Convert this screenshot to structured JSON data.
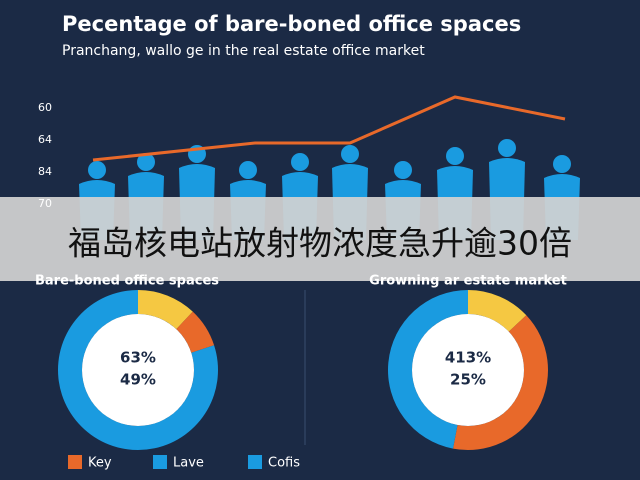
{
  "header": {
    "title": "Pecentage of bare-boned office spaces",
    "subtitle": "Pranchang, wallo ge in the real estate office market"
  },
  "trend": {
    "axis_labels": [
      "60",
      "64",
      "84",
      "70"
    ]
  },
  "banner": "福岛核电站放射物浓度急升逾30倍",
  "donuts": [
    {
      "title": "Bare-boned office spaces",
      "labels": [
        "63%",
        "49%"
      ],
      "segments": [
        {
          "color": "#f5c842",
          "value": 12
        },
        {
          "color": "#e8692a",
          "value": 8
        },
        {
          "color": "#1a9be0",
          "value": 80
        }
      ]
    },
    {
      "title": "Growning ar estate market",
      "labels": [
        "413%",
        "25%"
      ],
      "segments": [
        {
          "color": "#f5c842",
          "value": 13
        },
        {
          "color": "#e8692a",
          "value": 40
        },
        {
          "color": "#1a9be0",
          "value": 47
        }
      ]
    }
  ],
  "legend": [
    {
      "label": "Key",
      "color": "#e8692a"
    },
    {
      "label": "Lave",
      "color": "#1a9be0"
    },
    {
      "label": "Cofis",
      "color": "#1a9be0"
    }
  ]
}
